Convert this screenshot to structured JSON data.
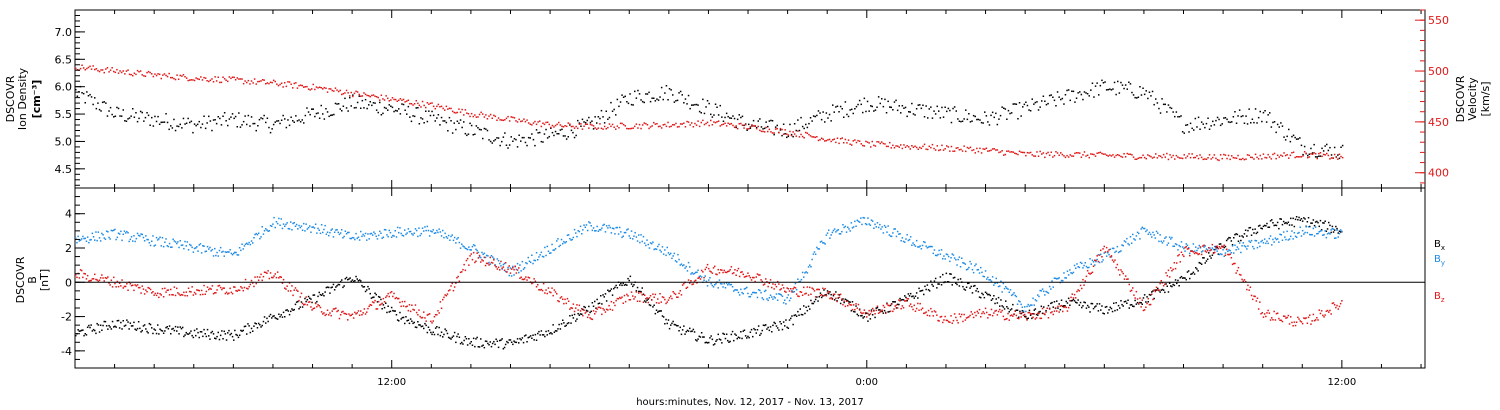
{
  "colors": {
    "black": "#000000",
    "red": "#e01818",
    "blue": "#1e8ce6",
    "axis_right": "#e01818"
  },
  "xaxis": {
    "label": "hours:minutes, Nov. 12, 2017 - Nov. 13, 2017",
    "ticks": [
      {
        "h": 12,
        "label": "12:00"
      },
      {
        "h": 24,
        "label": "0:00"
      },
      {
        "h": 36,
        "label": "12:00"
      }
    ],
    "range_hours": [
      4.0,
      38.1
    ]
  },
  "chart_data": [
    {
      "type": "scatter",
      "panel": "top",
      "left_axis": {
        "label_lines": [
          "DSCOVR",
          "Ion Density"
        ],
        "units": "[cm⁻³]",
        "ticks": [
          "4.5",
          "5.0",
          "5.5",
          "6.0",
          "6.5",
          "7.0"
        ],
        "ylim": [
          4.15,
          7.4
        ]
      },
      "right_axis": {
        "label_lines": [
          "DSCOVR",
          "Velocity"
        ],
        "units": "[km/s]",
        "ticks": [
          "400",
          "450",
          "500",
          "550"
        ],
        "ylim": [
          385,
          560
        ]
      },
      "series": [
        {
          "name": "Ion Density",
          "axis": "left",
          "color": "black",
          "x": [
            4.0,
            5.0,
            6.0,
            7.0,
            8.0,
            9.0,
            10.0,
            11.0,
            12.0,
            13.0,
            14.0,
            15.0,
            16.0,
            17.0,
            18.0,
            19.0,
            20.0,
            21.0,
            22.0,
            23.0,
            24.0,
            25.0,
            26.0,
            27.0,
            28.0,
            29.0,
            30.0,
            31.0,
            32.0,
            33.0,
            34.0,
            35.0,
            36.0
          ],
          "values": [
            5.9,
            5.5,
            5.4,
            5.3,
            5.4,
            5.3,
            5.5,
            5.7,
            5.6,
            5.4,
            5.2,
            5.0,
            5.1,
            5.3,
            5.8,
            5.9,
            5.6,
            5.3,
            5.2,
            5.5,
            5.7,
            5.6,
            5.5,
            5.4,
            5.6,
            5.8,
            6.0,
            5.9,
            5.3,
            5.4,
            5.5,
            4.9,
            4.8
          ]
        },
        {
          "name": "Velocity",
          "axis": "right",
          "color": "red",
          "x": [
            4.0,
            5.0,
            6.0,
            7.0,
            8.0,
            9.0,
            10.0,
            11.0,
            12.0,
            13.0,
            14.0,
            15.0,
            16.0,
            17.0,
            18.0,
            19.0,
            20.0,
            21.0,
            22.0,
            23.0,
            24.0,
            25.0,
            26.0,
            27.0,
            28.0,
            29.0,
            30.0,
            31.0,
            32.0,
            33.0,
            34.0,
            35.0,
            36.0
          ],
          "values": [
            504,
            500,
            496,
            493,
            491,
            488,
            484,
            478,
            472,
            466,
            458,
            452,
            447,
            445,
            446,
            447,
            449,
            445,
            440,
            433,
            428,
            426,
            424,
            422,
            418,
            418,
            417,
            416,
            416,
            415,
            416,
            418,
            415
          ]
        }
      ]
    },
    {
      "type": "scatter",
      "panel": "bottom",
      "left_axis": {
        "label_lines": [
          "DSCOVR",
          "B"
        ],
        "units": "[nT]",
        "ticks": [
          "-4",
          "-2",
          "0",
          "2",
          "4"
        ],
        "ylim": [
          -5.0,
          5.5
        ]
      },
      "zero_line": true,
      "legend": {
        "placement": "right",
        "items": [
          "B",
          "B",
          "B"
        ],
        "subscripts": [
          "x",
          "y",
          "z"
        ]
      },
      "series": [
        {
          "name": "Bx",
          "color": "black",
          "x": [
            4.0,
            5.0,
            6.0,
            7.0,
            8.0,
            9.0,
            10.0,
            11.0,
            12.0,
            13.0,
            14.0,
            15.0,
            16.0,
            17.0,
            18.0,
            19.0,
            20.0,
            21.0,
            22.0,
            23.0,
            24.0,
            25.0,
            26.0,
            27.0,
            28.0,
            29.0,
            30.0,
            31.0,
            32.0,
            33.0,
            34.0,
            35.0,
            36.0
          ],
          "values": [
            -3.0,
            -2.4,
            -2.7,
            -3.0,
            -3.1,
            -2.0,
            -1.0,
            0.3,
            -1.8,
            -2.8,
            -3.5,
            -3.6,
            -2.8,
            -1.5,
            0.2,
            -2.5,
            -3.4,
            -3.0,
            -2.4,
            -0.5,
            -2.0,
            -1.0,
            0.3,
            -0.8,
            -2.0,
            -1.2,
            -1.6,
            -1.0,
            0.2,
            2.2,
            3.3,
            3.6,
            3.0
          ]
        },
        {
          "name": "By",
          "color": "blue",
          "x": [
            4.0,
            5.0,
            6.0,
            7.0,
            8.0,
            9.0,
            10.0,
            11.0,
            12.0,
            13.0,
            14.0,
            15.0,
            16.0,
            17.0,
            18.0,
            19.0,
            20.0,
            21.0,
            22.0,
            23.0,
            24.0,
            25.0,
            26.0,
            27.0,
            28.0,
            29.0,
            30.0,
            31.0,
            32.0,
            33.0,
            34.0,
            35.0,
            36.0
          ],
          "values": [
            2.5,
            2.8,
            2.4,
            2.0,
            1.6,
            3.5,
            3.2,
            2.6,
            2.9,
            3.0,
            2.0,
            0.6,
            2.0,
            3.3,
            2.8,
            1.7,
            0.0,
            -0.6,
            -1.0,
            2.8,
            3.6,
            2.5,
            1.5,
            0.5,
            -1.5,
            0.5,
            1.5,
            3.0,
            2.0,
            1.8,
            2.3,
            3.0,
            2.8
          ]
        },
        {
          "name": "Bz",
          "color": "red",
          "x": [
            4.0,
            5.0,
            6.0,
            7.0,
            8.0,
            9.0,
            10.0,
            11.0,
            12.0,
            13.0,
            14.0,
            15.0,
            16.0,
            17.0,
            18.0,
            19.0,
            20.0,
            21.0,
            22.0,
            23.0,
            24.0,
            25.0,
            26.0,
            27.0,
            28.0,
            29.0,
            30.0,
            31.0,
            32.0,
            33.0,
            34.0,
            35.0,
            36.0
          ],
          "values": [
            0.5,
            0.0,
            -0.6,
            -0.5,
            -0.4,
            0.5,
            -1.5,
            -2.0,
            -0.8,
            -2.2,
            1.5,
            0.8,
            -0.6,
            -2.0,
            -0.8,
            -1.0,
            0.8,
            0.5,
            -0.5,
            -0.6,
            -1.8,
            -1.2,
            -2.2,
            -1.8,
            -2.0,
            -1.6,
            2.0,
            -1.5,
            1.8,
            2.0,
            -1.8,
            -2.4,
            -1.2
          ]
        }
      ]
    }
  ]
}
